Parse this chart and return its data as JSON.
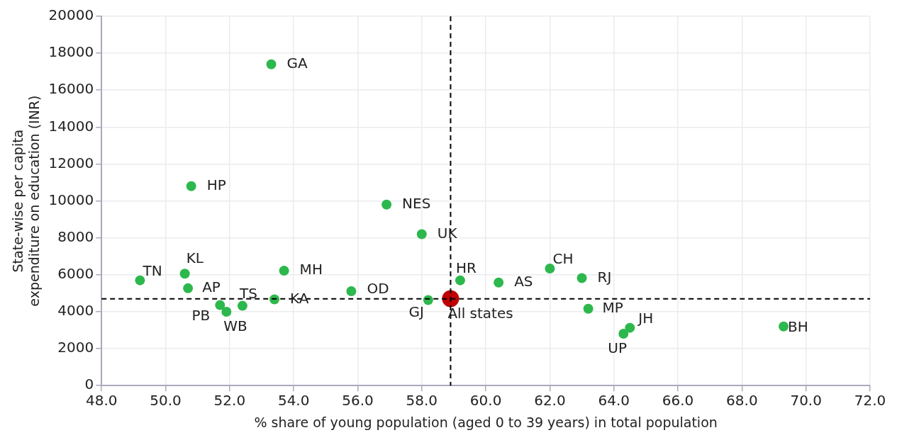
{
  "chart_data": {
    "type": "scatter",
    "xlabel": "% share of young population (aged 0 to 39 years) in total population",
    "ylabel": "State-wise per capita expenditure on education (INR)",
    "series": [
      {
        "color": "#2db84d",
        "x": [
          53.3,
          50.8,
          56.9,
          58.0,
          49.2,
          50.6,
          50.7,
          53.7,
          55.8,
          51.7,
          51.9,
          52.4,
          53.4,
          58.2,
          59.2,
          60.4,
          62.0,
          63.0,
          63.2,
          64.5,
          64.3,
          69.3
        ],
        "values": [
          17400,
          10800,
          9800,
          8200,
          5700,
          6060,
          5270,
          6220,
          5110,
          4360,
          4000,
          4320,
          4670,
          4630,
          5700,
          5580,
          6340,
          5820,
          4160,
          3130,
          2810,
          3200
        ]
      },
      {
        "color": "#c00000",
        "x": [
          58.9
        ],
        "values": [
          4710
        ]
      }
    ],
    "annotations": [
      {
        "text": "GA",
        "x": 53.3,
        "y": 17400
      },
      {
        "text": "HP",
        "x": 50.8,
        "y": 10800
      },
      {
        "text": "NES",
        "x": 56.9,
        "y": 9800
      },
      {
        "text": "UK",
        "x": 58.0,
        "y": 8200
      },
      {
        "text": "TN",
        "x": 49.2,
        "y": 5700
      },
      {
        "text": "KL",
        "x": 50.6,
        "y": 6060
      },
      {
        "text": "AP",
        "x": 50.7,
        "y": 5270
      },
      {
        "text": "MH",
        "x": 53.7,
        "y": 6220
      },
      {
        "text": "OD",
        "x": 55.8,
        "y": 5110
      },
      {
        "text": "PB",
        "x": 51.7,
        "y": 4360
      },
      {
        "text": "WB",
        "x": 51.9,
        "y": 4000
      },
      {
        "text": "TS",
        "x": 52.4,
        "y": 4320
      },
      {
        "text": "KA",
        "x": 53.4,
        "y": 4670
      },
      {
        "text": "GJ",
        "x": 58.2,
        "y": 4630
      },
      {
        "text": "HR",
        "x": 59.2,
        "y": 5700
      },
      {
        "text": "AS",
        "x": 60.4,
        "y": 5580
      },
      {
        "text": "CH",
        "x": 62.0,
        "y": 6340
      },
      {
        "text": "RJ",
        "x": 63.0,
        "y": 5820
      },
      {
        "text": "MP",
        "x": 63.2,
        "y": 4160
      },
      {
        "text": "JH",
        "x": 64.5,
        "y": 3130
      },
      {
        "text": "UP",
        "x": 64.3,
        "y": 2810
      },
      {
        "text": "BH",
        "x": 69.3,
        "y": 3200
      },
      {
        "text": "All states",
        "x": 58.9,
        "y": 4710
      }
    ],
    "ref_lines": [
      {
        "axis": "x",
        "value": 58.9,
        "color": "#000000",
        "line_style": "dashed"
      },
      {
        "axis": "y",
        "value": 4700,
        "color": "#000000",
        "line_style": "dashed"
      }
    ],
    "xlim": [
      48,
      72
    ],
    "xticks": [
      {
        "value": 48,
        "label": "48.0"
      },
      {
        "value": 50,
        "label": "50.0"
      },
      {
        "value": 52,
        "label": "52.0"
      },
      {
        "value": 54,
        "label": "54.0"
      },
      {
        "value": 56,
        "label": "56.0"
      },
      {
        "value": 58,
        "label": "58.0"
      },
      {
        "value": 60,
        "label": "60.0"
      },
      {
        "value": 62,
        "label": "62.0"
      },
      {
        "value": 64,
        "label": "64.0"
      },
      {
        "value": 66,
        "label": "66.0"
      },
      {
        "value": 68,
        "label": "68.0"
      },
      {
        "value": 70,
        "label": "70.0"
      },
      {
        "value": 72,
        "label": "72.0"
      }
    ],
    "ylim": [
      0,
      20000
    ],
    "yticks": [
      0,
      2000,
      4000,
      6000,
      8000,
      10000,
      12000,
      14000,
      16000,
      18000,
      20000
    ],
    "grid": true,
    "legend": false,
    "marker": "circle"
  }
}
